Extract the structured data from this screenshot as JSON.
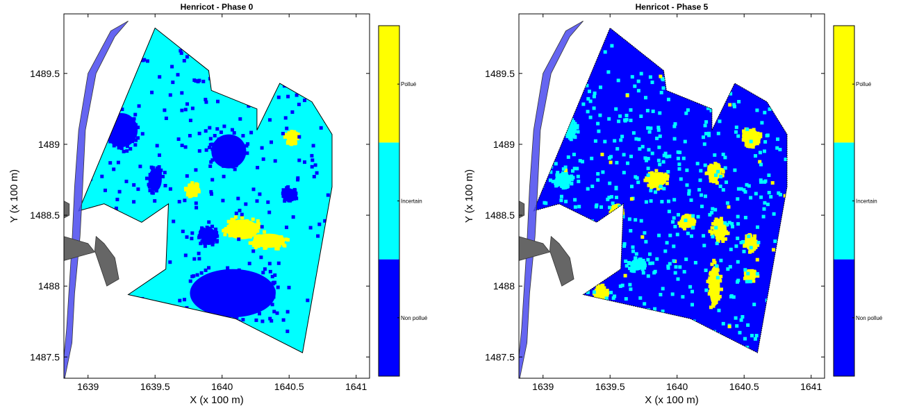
{
  "chart_data": [
    {
      "type": "heatmap",
      "title": "Henricot - Phase 0",
      "xlabel": "X (x 100 m)",
      "ylabel": "Y (x 100 m)",
      "xlim": [
        1638.82,
        1641.1
      ],
      "ylim": [
        1487.35,
        1489.92
      ],
      "xticks": [
        "1639",
        "1639.5",
        "1640",
        "1640.5",
        "1641"
      ],
      "yticks": [
        "1487.5",
        "1488",
        "1488.5",
        "1489",
        "1489.5"
      ],
      "xtick_values": [
        1639,
        1639.5,
        1640,
        1640.5,
        1641
      ],
      "ytick_values": [
        1487.5,
        1488,
        1488.5,
        1489,
        1489.5
      ],
      "classes": [
        {
          "label": "Non pollué",
          "color": "#0000ff"
        },
        {
          "label": "Incertain",
          "color": "#00ffff"
        },
        {
          "label": "Pollué",
          "color": "#ffff00"
        }
      ],
      "site_boundary": [
        [
          1638.93,
          1488.53
        ],
        [
          1639.12,
          1488.58
        ],
        [
          1639.4,
          1488.45
        ],
        [
          1639.6,
          1488.58
        ],
        [
          1639.58,
          1488.12
        ],
        [
          1639.3,
          1487.94
        ],
        [
          1640.1,
          1487.77
        ],
        [
          1640.6,
          1487.53
        ],
        [
          1640.82,
          1488.7
        ],
        [
          1640.82,
          1489.07
        ],
        [
          1640.67,
          1489.3
        ],
        [
          1640.43,
          1489.43
        ],
        [
          1640.26,
          1489.1
        ],
        [
          1640.26,
          1489.25
        ],
        [
          1639.92,
          1489.38
        ],
        [
          1639.9,
          1489.52
        ],
        [
          1639.5,
          1489.82
        ]
      ],
      "canal": [
        [
          1639.3,
          1489.87
        ],
        [
          1639.17,
          1489.8
        ],
        [
          1639.0,
          1489.5
        ],
        [
          1638.93,
          1489.1
        ],
        [
          1638.9,
          1488.7
        ],
        [
          1638.88,
          1488.3
        ],
        [
          1638.84,
          1487.7
        ],
        [
          1638.82,
          1487.5
        ],
        [
          1638.82,
          1487.32
        ],
        [
          1638.88,
          1487.6
        ],
        [
          1638.9,
          1487.95
        ],
        [
          1638.94,
          1488.35
        ],
        [
          1638.96,
          1488.7
        ],
        [
          1638.98,
          1489.1
        ],
        [
          1639.06,
          1489.5
        ],
        [
          1639.2,
          1489.76
        ]
      ],
      "buildings": [
        [
          [
            1638.82,
            1488.6
          ],
          [
            1638.86,
            1488.58
          ],
          [
            1638.86,
            1488.5
          ],
          [
            1638.82,
            1488.48
          ]
        ],
        [
          [
            1638.82,
            1488.35
          ],
          [
            1639.0,
            1488.3
          ],
          [
            1639.05,
            1488.24
          ],
          [
            1638.82,
            1488.18
          ]
        ],
        [
          [
            1639.06,
            1488.35
          ],
          [
            1639.12,
            1488.3
          ],
          [
            1639.2,
            1488.2
          ],
          [
            1639.23,
            1488.05
          ],
          [
            1639.14,
            1488.0
          ],
          [
            1639.05,
            1488.25
          ]
        ]
      ],
      "zones": [
        {
          "class": "Non pollué",
          "x": 1639.25,
          "y": 1489.1,
          "rx": 0.12,
          "ry": 0.12
        },
        {
          "class": "Non pollué",
          "x": 1639.5,
          "y": 1488.75,
          "rx": 0.05,
          "ry": 0.08
        },
        {
          "class": "Non pollué",
          "x": 1640.05,
          "y": 1488.95,
          "rx": 0.13,
          "ry": 0.12
        },
        {
          "class": "Non pollué",
          "x": 1640.5,
          "y": 1488.65,
          "rx": 0.04,
          "ry": 0.04
        },
        {
          "class": "Non pollué",
          "x": 1640.08,
          "y": 1487.95,
          "rx": 0.32,
          "ry": 0.17
        },
        {
          "class": "Non pollué",
          "x": 1639.9,
          "y": 1488.35,
          "rx": 0.06,
          "ry": 0.06
        },
        {
          "class": "Pollué",
          "x": 1640.52,
          "y": 1489.05,
          "rx": 0.04,
          "ry": 0.04
        },
        {
          "class": "Pollué",
          "x": 1639.78,
          "y": 1488.68,
          "rx": 0.04,
          "ry": 0.04
        },
        {
          "class": "Pollué",
          "x": 1640.15,
          "y": 1488.4,
          "rx": 0.12,
          "ry": 0.07
        },
        {
          "class": "Pollué",
          "x": 1640.35,
          "y": 1488.32,
          "rx": 0.12,
          "ry": 0.05
        }
      ]
    },
    {
      "type": "heatmap",
      "title": "Henricot - Phase 5",
      "xlabel": "X (x 100 m)",
      "ylabel": "Y (x 100 m)",
      "xlim": [
        1638.82,
        1641.1
      ],
      "ylim": [
        1487.35,
        1489.92
      ],
      "xticks": [
        "1639",
        "1639.5",
        "1640",
        "1640.5",
        "1641"
      ],
      "yticks": [
        "1487.5",
        "1488",
        "1488.5",
        "1489",
        "1489.5"
      ],
      "xtick_values": [
        1639,
        1639.5,
        1640,
        1640.5,
        1641
      ],
      "ytick_values": [
        1487.5,
        1488,
        1488.5,
        1489,
        1489.5
      ],
      "classes": [
        {
          "label": "Non pollué",
          "color": "#0000ff"
        },
        {
          "label": "Incertain",
          "color": "#00ffff"
        },
        {
          "label": "Pollué",
          "color": "#ffff00"
        }
      ],
      "site_boundary": [
        [
          1638.93,
          1488.53
        ],
        [
          1639.12,
          1488.58
        ],
        [
          1639.4,
          1488.45
        ],
        [
          1639.6,
          1488.58
        ],
        [
          1639.58,
          1488.12
        ],
        [
          1639.3,
          1487.94
        ],
        [
          1640.1,
          1487.77
        ],
        [
          1640.6,
          1487.53
        ],
        [
          1640.82,
          1488.7
        ],
        [
          1640.82,
          1489.07
        ],
        [
          1640.67,
          1489.3
        ],
        [
          1640.43,
          1489.43
        ],
        [
          1640.26,
          1489.1
        ],
        [
          1640.26,
          1489.25
        ],
        [
          1639.92,
          1489.38
        ],
        [
          1639.9,
          1489.52
        ],
        [
          1639.5,
          1489.82
        ]
      ],
      "canal": [
        [
          1639.3,
          1489.87
        ],
        [
          1639.17,
          1489.8
        ],
        [
          1639.0,
          1489.5
        ],
        [
          1638.93,
          1489.1
        ],
        [
          1638.9,
          1488.7
        ],
        [
          1638.88,
          1488.3
        ],
        [
          1638.84,
          1487.7
        ],
        [
          1638.82,
          1487.5
        ],
        [
          1638.82,
          1487.32
        ],
        [
          1638.88,
          1487.6
        ],
        [
          1638.9,
          1487.95
        ],
        [
          1638.94,
          1488.35
        ],
        [
          1638.96,
          1488.7
        ],
        [
          1638.98,
          1489.1
        ],
        [
          1639.06,
          1489.5
        ],
        [
          1639.2,
          1489.76
        ]
      ],
      "buildings": [
        [
          [
            1638.82,
            1488.6
          ],
          [
            1638.86,
            1488.58
          ],
          [
            1638.86,
            1488.5
          ],
          [
            1638.82,
            1488.48
          ]
        ],
        [
          [
            1638.82,
            1488.35
          ],
          [
            1639.0,
            1488.3
          ],
          [
            1639.05,
            1488.24
          ],
          [
            1638.82,
            1488.18
          ]
        ],
        [
          [
            1639.06,
            1488.35
          ],
          [
            1639.12,
            1488.3
          ],
          [
            1639.2,
            1488.2
          ],
          [
            1639.23,
            1488.05
          ],
          [
            1639.14,
            1488.0
          ],
          [
            1639.05,
            1488.25
          ]
        ]
      ],
      "zones": [
        {
          "class": "Pollué",
          "x": 1640.55,
          "y": 1489.05,
          "rx": 0.06,
          "ry": 0.06
        },
        {
          "class": "Pollué",
          "x": 1640.28,
          "y": 1488.8,
          "rx": 0.05,
          "ry": 0.05
        },
        {
          "class": "Pollué",
          "x": 1639.85,
          "y": 1488.75,
          "rx": 0.07,
          "ry": 0.05
        },
        {
          "class": "Pollué",
          "x": 1639.55,
          "y": 1488.52,
          "rx": 0.04,
          "ry": 0.04
        },
        {
          "class": "Pollué",
          "x": 1640.08,
          "y": 1488.45,
          "rx": 0.05,
          "ry": 0.04
        },
        {
          "class": "Pollué",
          "x": 1640.32,
          "y": 1488.4,
          "rx": 0.05,
          "ry": 0.07
        },
        {
          "class": "Pollué",
          "x": 1640.55,
          "y": 1488.3,
          "rx": 0.04,
          "ry": 0.05
        },
        {
          "class": "Pollué",
          "x": 1640.55,
          "y": 1488.07,
          "rx": 0.04,
          "ry": 0.03
        },
        {
          "class": "Pollué",
          "x": 1640.28,
          "y": 1488.0,
          "rx": 0.04,
          "ry": 0.14
        },
        {
          "class": "Pollué",
          "x": 1639.43,
          "y": 1487.95,
          "rx": 0.04,
          "ry": 0.05
        },
        {
          "class": "Incertain",
          "x": 1639.2,
          "y": 1489.1,
          "rx": 0.05,
          "ry": 0.05
        },
        {
          "class": "Incertain",
          "x": 1639.15,
          "y": 1488.75,
          "rx": 0.06,
          "ry": 0.05
        },
        {
          "class": "Incertain",
          "x": 1639.7,
          "y": 1488.15,
          "rx": 0.05,
          "ry": 0.04
        }
      ]
    }
  ]
}
